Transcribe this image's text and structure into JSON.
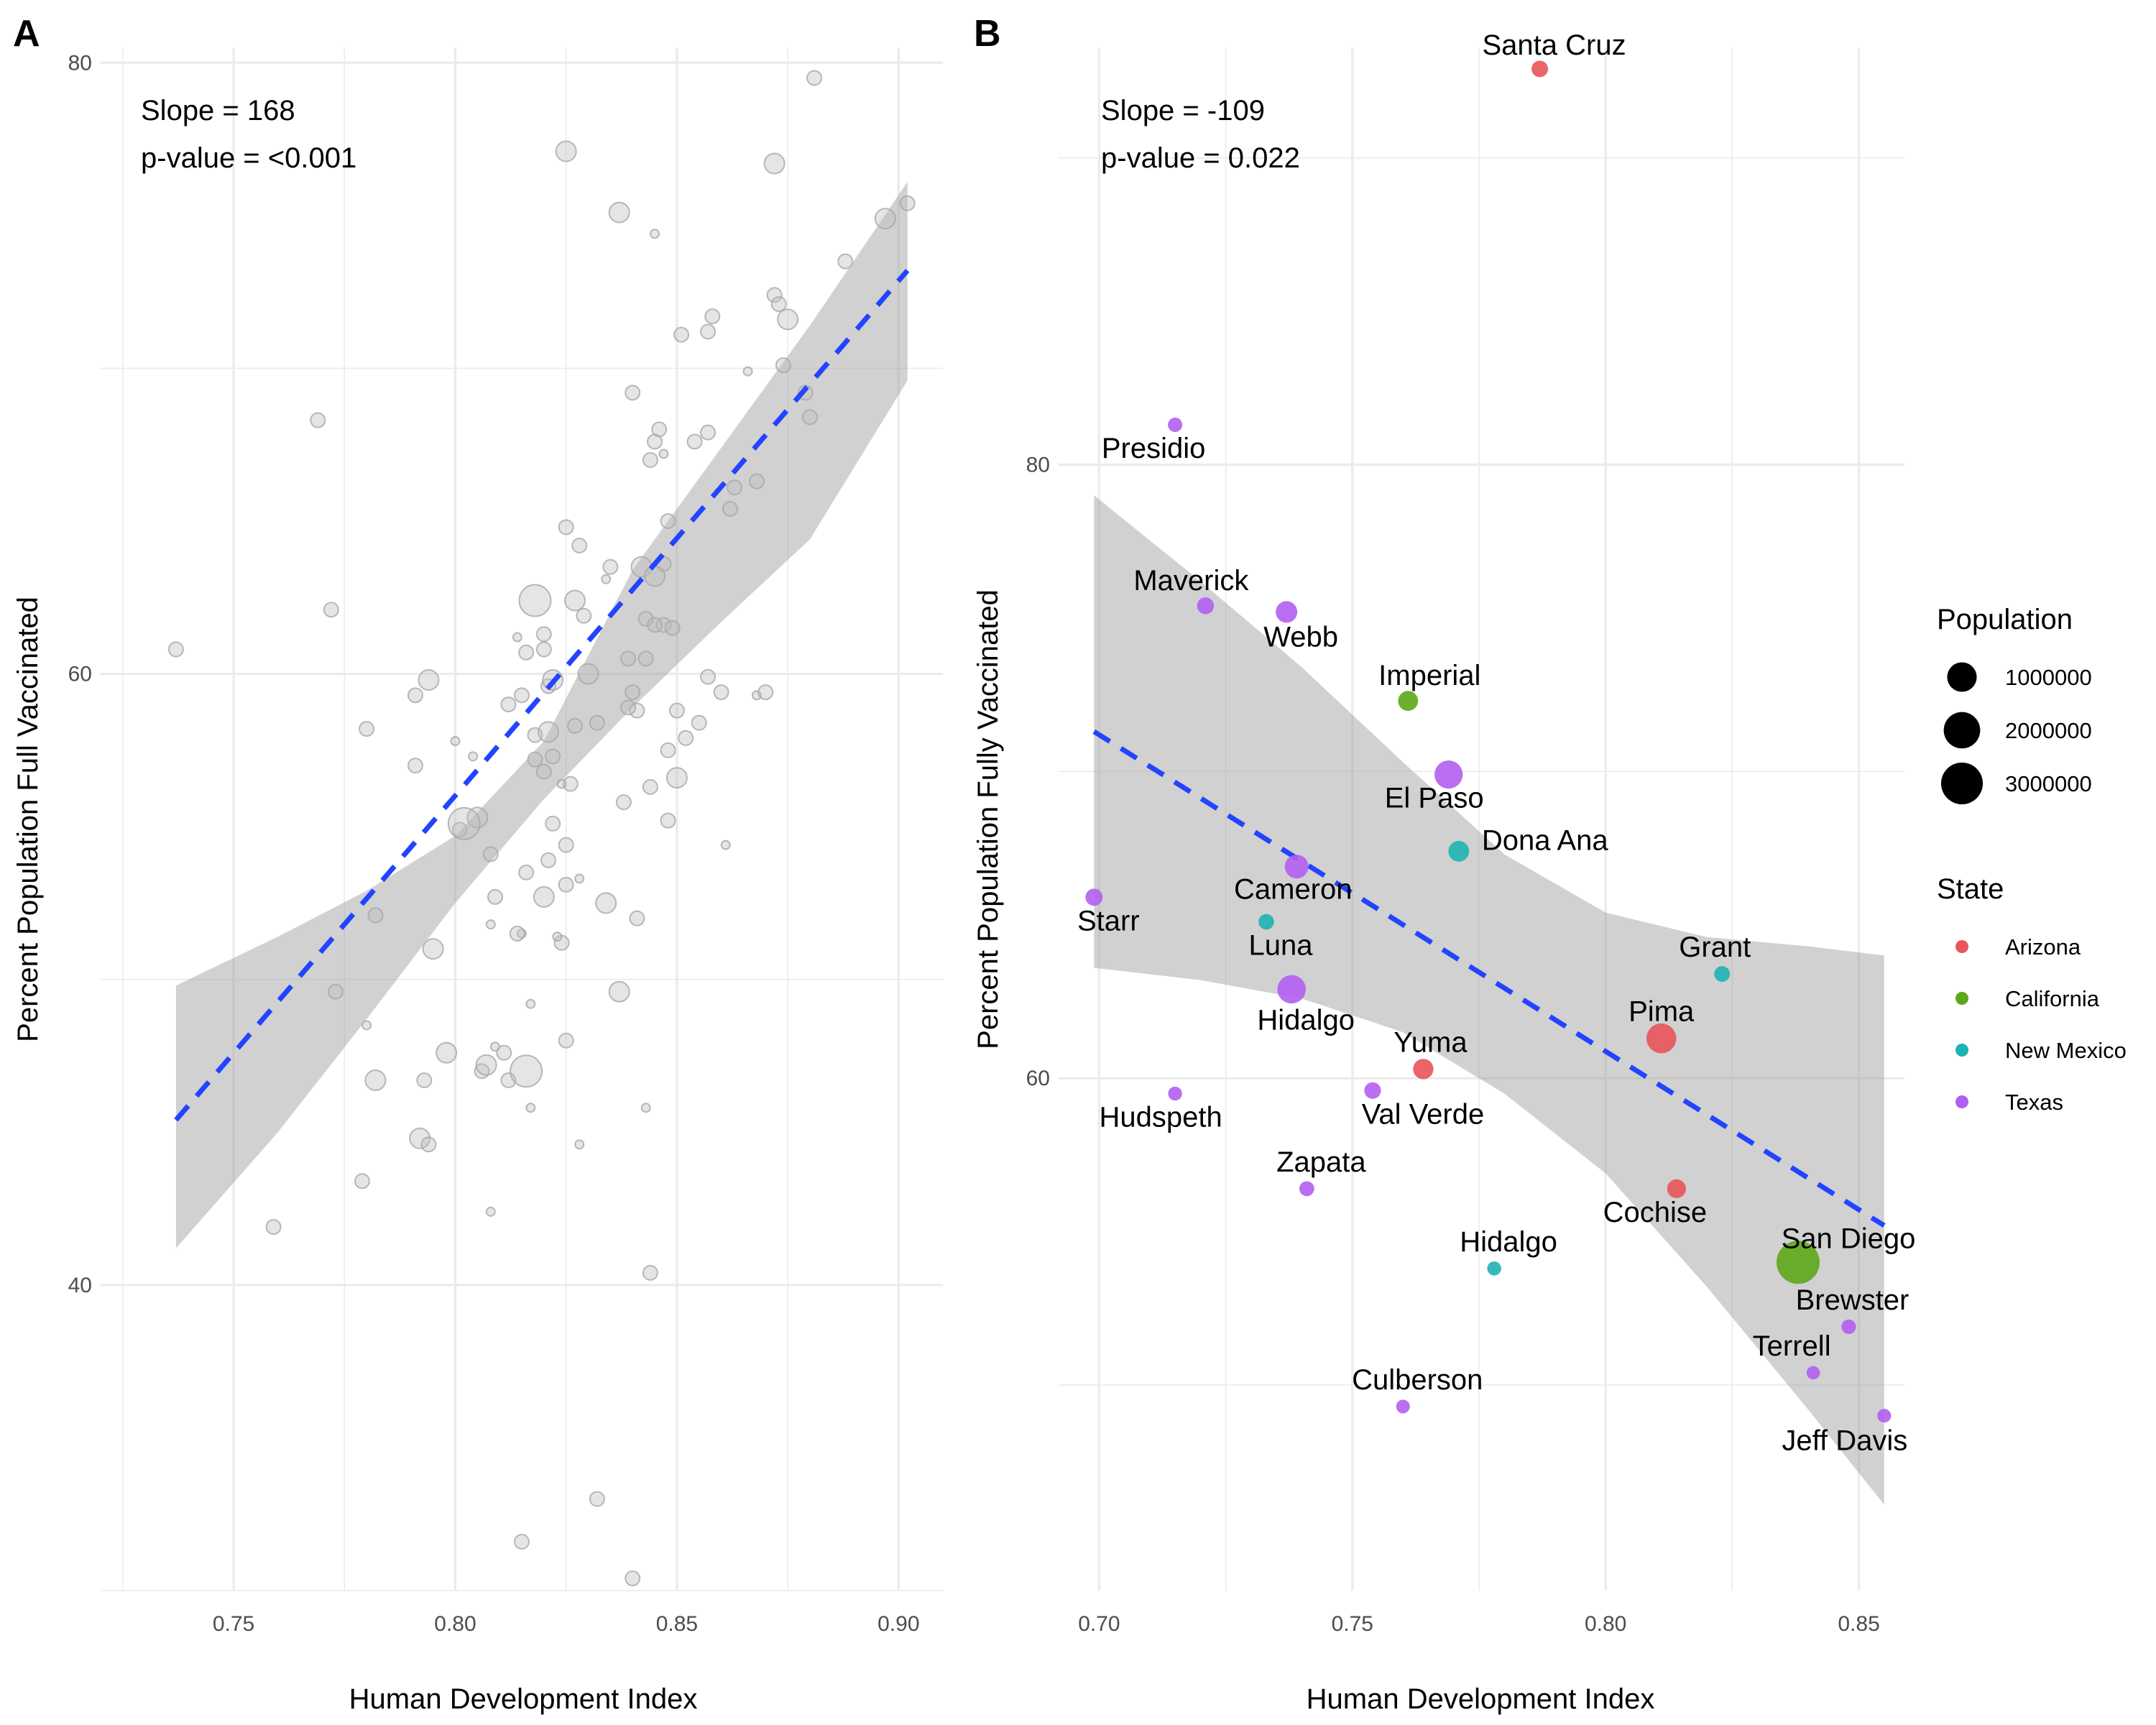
{
  "chart_data": [
    {
      "panel": "A",
      "type": "scatter",
      "xlabel": "Human Development Index",
      "ylabel": "Percent Population Full Vaccinated",
      "xlim": [
        0.72,
        0.91
      ],
      "ylim": [
        30,
        80.5
      ],
      "x_ticks": [
        0.75,
        0.8,
        0.85,
        0.9
      ],
      "x_tick_labels": [
        "0.75",
        "0.80",
        "0.85",
        "0.90"
      ],
      "y_ticks": [
        40,
        60,
        80
      ],
      "y_tick_labels": [
        "40",
        "60",
        "80"
      ],
      "grid": true,
      "annotations": [
        "Slope = 168",
        "p-value = <0.001"
      ],
      "trend": {
        "x": [
          0.737,
          0.902
        ],
        "y": [
          45.4,
          73.2
        ],
        "style": "dashed",
        "color": "#2244ff"
      },
      "band": {
        "x": [
          0.737,
          0.76,
          0.78,
          0.8,
          0.82,
          0.84,
          0.86,
          0.88,
          0.902
        ],
        "upper": [
          49.8,
          51.4,
          52.9,
          54.7,
          57.8,
          63.4,
          67.4,
          71.4,
          76.1
        ],
        "lower": [
          41.2,
          45.0,
          48.7,
          52.5,
          55.9,
          58.9,
          61.7,
          64.4,
          69.6
        ]
      },
      "points": [
        [
          0.881,
          79.5,
          1
        ],
        [
          0.825,
          77.1,
          2
        ],
        [
          0.872,
          76.7,
          2
        ],
        [
          0.902,
          75.4,
          1
        ],
        [
          0.897,
          74.9,
          2
        ],
        [
          0.837,
          75.1,
          2
        ],
        [
          0.845,
          74.4,
          0
        ],
        [
          0.888,
          73.5,
          1
        ],
        [
          0.872,
          72.4,
          1
        ],
        [
          0.873,
          72.1,
          1
        ],
        [
          0.875,
          71.6,
          2
        ],
        [
          0.858,
          71.7,
          1
        ],
        [
          0.857,
          71.2,
          1
        ],
        [
          0.851,
          71.1,
          1
        ],
        [
          0.874,
          70.1,
          1
        ],
        [
          0.866,
          69.9,
          0
        ],
        [
          0.84,
          69.2,
          1
        ],
        [
          0.879,
          69.2,
          1
        ],
        [
          0.88,
          68.4,
          1
        ],
        [
          0.769,
          68.3,
          1
        ],
        [
          0.846,
          68.0,
          1
        ],
        [
          0.857,
          67.9,
          1
        ],
        [
          0.854,
          67.6,
          1
        ],
        [
          0.845,
          67.6,
          1
        ],
        [
          0.847,
          67.2,
          0
        ],
        [
          0.844,
          67.0,
          1
        ],
        [
          0.863,
          66.1,
          1
        ],
        [
          0.868,
          66.3,
          1
        ],
        [
          0.862,
          65.4,
          1
        ],
        [
          0.848,
          65.0,
          1
        ],
        [
          0.825,
          64.8,
          1
        ],
        [
          0.828,
          64.2,
          1
        ],
        [
          0.847,
          63.6,
          1
        ],
        [
          0.835,
          63.5,
          1
        ],
        [
          0.842,
          63.5,
          2
        ],
        [
          0.845,
          63.2,
          2
        ],
        [
          0.818,
          62.4,
          3
        ],
        [
          0.827,
          62.4,
          2
        ],
        [
          0.834,
          63.1,
          0
        ],
        [
          0.829,
          61.9,
          1
        ],
        [
          0.843,
          61.8,
          1
        ],
        [
          0.847,
          61.6,
          1
        ],
        [
          0.772,
          62.1,
          1
        ],
        [
          0.814,
          61.2,
          0
        ],
        [
          0.82,
          61.3,
          1
        ],
        [
          0.82,
          60.8,
          1
        ],
        [
          0.845,
          61.6,
          1
        ],
        [
          0.843,
          60.5,
          1
        ],
        [
          0.839,
          60.5,
          1
        ],
        [
          0.849,
          61.5,
          1
        ],
        [
          0.737,
          60.8,
          1
        ],
        [
          0.816,
          60.7,
          1
        ],
        [
          0.83,
          60.0,
          2
        ],
        [
          0.794,
          59.8,
          2
        ],
        [
          0.86,
          59.4,
          1
        ],
        [
          0.868,
          59.3,
          0
        ],
        [
          0.857,
          59.9,
          1
        ],
        [
          0.815,
          59.3,
          1
        ],
        [
          0.821,
          59.6,
          1
        ],
        [
          0.812,
          59.0,
          1
        ],
        [
          0.841,
          58.8,
          1
        ],
        [
          0.85,
          58.8,
          1
        ],
        [
          0.839,
          58.9,
          1
        ],
        [
          0.87,
          59.4,
          1
        ],
        [
          0.855,
          58.4,
          1
        ],
        [
          0.818,
          58.0,
          1
        ],
        [
          0.832,
          58.4,
          1
        ],
        [
          0.827,
          58.3,
          1
        ],
        [
          0.8,
          57.8,
          0
        ],
        [
          0.848,
          57.5,
          1
        ],
        [
          0.852,
          57.9,
          1
        ],
        [
          0.822,
          57.3,
          1
        ],
        [
          0.82,
          56.8,
          1
        ],
        [
          0.804,
          57.3,
          0
        ],
        [
          0.826,
          56.4,
          1
        ],
        [
          0.848,
          55.2,
          1
        ],
        [
          0.822,
          55.1,
          1
        ],
        [
          0.838,
          55.8,
          1
        ],
        [
          0.822,
          59.8,
          2
        ],
        [
          0.821,
          58.1,
          2
        ],
        [
          0.818,
          57.2,
          1
        ],
        [
          0.824,
          56.4,
          0
        ],
        [
          0.791,
          57.0,
          1
        ],
        [
          0.844,
          56.3,
          1
        ],
        [
          0.85,
          56.6,
          2
        ],
        [
          0.791,
          59.3,
          1
        ],
        [
          0.78,
          58.2,
          1
        ],
        [
          0.801,
          54.9,
          1
        ],
        [
          0.805,
          55.3,
          2
        ],
        [
          0.802,
          55.1,
          3
        ],
        [
          0.84,
          59.4,
          1
        ],
        [
          0.825,
          54.4,
          1
        ],
        [
          0.861,
          54.4,
          0
        ],
        [
          0.808,
          54.1,
          1
        ],
        [
          0.821,
          53.9,
          1
        ],
        [
          0.816,
          53.5,
          1
        ],
        [
          0.825,
          53.1,
          1
        ],
        [
          0.828,
          53.3,
          0
        ],
        [
          0.82,
          52.7,
          2
        ],
        [
          0.809,
          52.7,
          1
        ],
        [
          0.782,
          52.1,
          1
        ],
        [
          0.808,
          51.8,
          0
        ],
        [
          0.815,
          51.5,
          0
        ],
        [
          0.814,
          51.5,
          1
        ],
        [
          0.834,
          52.5,
          2
        ],
        [
          0.841,
          52.0,
          1
        ],
        [
          0.824,
          51.2,
          1
        ],
        [
          0.823,
          51.4,
          0
        ],
        [
          0.795,
          51.0,
          2
        ],
        [
          0.837,
          49.6,
          2
        ],
        [
          0.773,
          49.6,
          1
        ],
        [
          0.817,
          49.2,
          0
        ],
        [
          0.78,
          48.5,
          0
        ],
        [
          0.798,
          47.6,
          2
        ],
        [
          0.811,
          47.6,
          1
        ],
        [
          0.809,
          47.8,
          0
        ],
        [
          0.825,
          48.0,
          1
        ],
        [
          0.782,
          46.7,
          2
        ],
        [
          0.793,
          46.7,
          1
        ],
        [
          0.806,
          47.0,
          1
        ],
        [
          0.812,
          46.7,
          1
        ],
        [
          0.807,
          47.2,
          2
        ],
        [
          0.816,
          47.0,
          3
        ],
        [
          0.817,
          45.8,
          0
        ],
        [
          0.843,
          45.8,
          0
        ],
        [
          0.792,
          44.8,
          2
        ],
        [
          0.794,
          44.6,
          1
        ],
        [
          0.828,
          44.6,
          0
        ],
        [
          0.779,
          43.4,
          1
        ],
        [
          0.808,
          42.4,
          0
        ],
        [
          0.759,
          41.9,
          1
        ],
        [
          0.844,
          40.4,
          1
        ],
        [
          0.832,
          33.0,
          1
        ],
        [
          0.815,
          31.6,
          1
        ],
        [
          0.84,
          30.4,
          1
        ]
      ]
    },
    {
      "panel": "B",
      "type": "scatter",
      "xlabel": "Human Development Index",
      "ylabel": "Percent Population Fully Vaccinated",
      "xlim": [
        0.692,
        0.859
      ],
      "ylim": [
        43.3,
        93.6
      ],
      "x_ticks": [
        0.7,
        0.75,
        0.8,
        0.85
      ],
      "x_tick_labels": [
        "0.70",
        "0.75",
        "0.80",
        "0.85"
      ],
      "y_ticks": [
        60,
        80
      ],
      "y_tick_labels": [
        "60",
        "80"
      ],
      "grid": true,
      "annotations": [
        "Slope = -109",
        "p-value = 0.022"
      ],
      "trend": {
        "x": [
          0.699,
          0.855
        ],
        "y": [
          71.3,
          55.2
        ],
        "style": "dashed",
        "color": "#2244ff"
      },
      "band": {
        "x": [
          0.699,
          0.72,
          0.74,
          0.76,
          0.78,
          0.8,
          0.82,
          0.84,
          0.855
        ],
        "upper": [
          79.0,
          76.2,
          73.4,
          70.3,
          67.3,
          65.4,
          64.6,
          64.3,
          64.0
        ],
        "lower": [
          63.6,
          63.2,
          62.6,
          61.5,
          59.5,
          56.9,
          53.2,
          49.2,
          46.1
        ]
      },
      "state_colors": {
        "Arizona": "#e8545a",
        "California": "#5da71a",
        "New Mexico": "#1eb3b3",
        "Texas": "#b25ef0"
      },
      "points": [
        {
          "name": "Santa Cruz",
          "x": 0.787,
          "y": 92.9,
          "pop": 47000,
          "state": "Arizona"
        },
        {
          "name": "Presidio",
          "x": 0.715,
          "y": 81.3,
          "pop": 7000,
          "state": "Texas"
        },
        {
          "name": "Maverick",
          "x": 0.721,
          "y": 75.4,
          "pop": 58000,
          "state": "Texas"
        },
        {
          "name": "Webb",
          "x": 0.737,
          "y": 75.2,
          "pop": 270000,
          "state": "Texas"
        },
        {
          "name": "Imperial",
          "x": 0.761,
          "y": 72.3,
          "pop": 180000,
          "state": "California"
        },
        {
          "name": "El Paso",
          "x": 0.769,
          "y": 69.9,
          "pop": 840000,
          "state": "Texas"
        },
        {
          "name": "Dona Ana",
          "x": 0.771,
          "y": 67.4,
          "pop": 220000,
          "state": "New Mexico"
        },
        {
          "name": "Cameron",
          "x": 0.739,
          "y": 66.9,
          "pop": 420000,
          "state": "Texas"
        },
        {
          "name": "Starr",
          "x": 0.699,
          "y": 65.9,
          "pop": 65000,
          "state": "Texas"
        },
        {
          "name": "Luna",
          "x": 0.733,
          "y": 65.1,
          "pop": 25000,
          "state": "New Mexico"
        },
        {
          "name": "Grant",
          "x": 0.823,
          "y": 63.4,
          "pop": 28000,
          "state": "New Mexico"
        },
        {
          "name": "Hidalgo",
          "x": 0.738,
          "y": 62.9,
          "pop": 870000,
          "state": "Texas"
        },
        {
          "name": "Pima",
          "x": 0.811,
          "y": 61.3,
          "pop": 1040000,
          "state": "Arizona"
        },
        {
          "name": "Yuma",
          "x": 0.764,
          "y": 60.3,
          "pop": 200000,
          "state": "Arizona"
        },
        {
          "name": "Val Verde",
          "x": 0.754,
          "y": 59.6,
          "pop": 49000,
          "state": "Texas"
        },
        {
          "name": "Hudspeth",
          "x": 0.715,
          "y": 59.5,
          "pop": 3300,
          "state": "Texas"
        },
        {
          "name": "Zapata",
          "x": 0.741,
          "y": 56.4,
          "pop": 14000,
          "state": "Texas"
        },
        {
          "name": "Cochise",
          "x": 0.814,
          "y": 56.4,
          "pop": 125000,
          "state": "Arizona"
        },
        {
          "name": "San Diego",
          "x": 0.838,
          "y": 54.0,
          "pop": 3300000,
          "state": "California"
        },
        {
          "name": "Hidalgo",
          "x": 0.778,
          "y": 53.8,
          "pop": 4200,
          "state": "New Mexico"
        },
        {
          "name": "Brewster",
          "x": 0.848,
          "y": 51.9,
          "pop": 9200,
          "state": "Texas"
        },
        {
          "name": "Terrell",
          "x": 0.841,
          "y": 50.4,
          "pop": 800,
          "state": "Texas"
        },
        {
          "name": "Culberson",
          "x": 0.76,
          "y": 49.3,
          "pop": 2200,
          "state": "Texas"
        },
        {
          "name": "Jeff Davis",
          "x": 0.855,
          "y": 49.0,
          "pop": 2300,
          "state": "Texas"
        }
      ],
      "legend": {
        "population_title": "Population",
        "population_entries": [
          {
            "label": "1000000",
            "value": 1000000
          },
          {
            "label": "2000000",
            "value": 2000000
          },
          {
            "label": "3000000",
            "value": 3000000
          }
        ],
        "state_title": "State",
        "state_entries": [
          "Arizona",
          "California",
          "New Mexico",
          "Texas"
        ]
      }
    }
  ]
}
